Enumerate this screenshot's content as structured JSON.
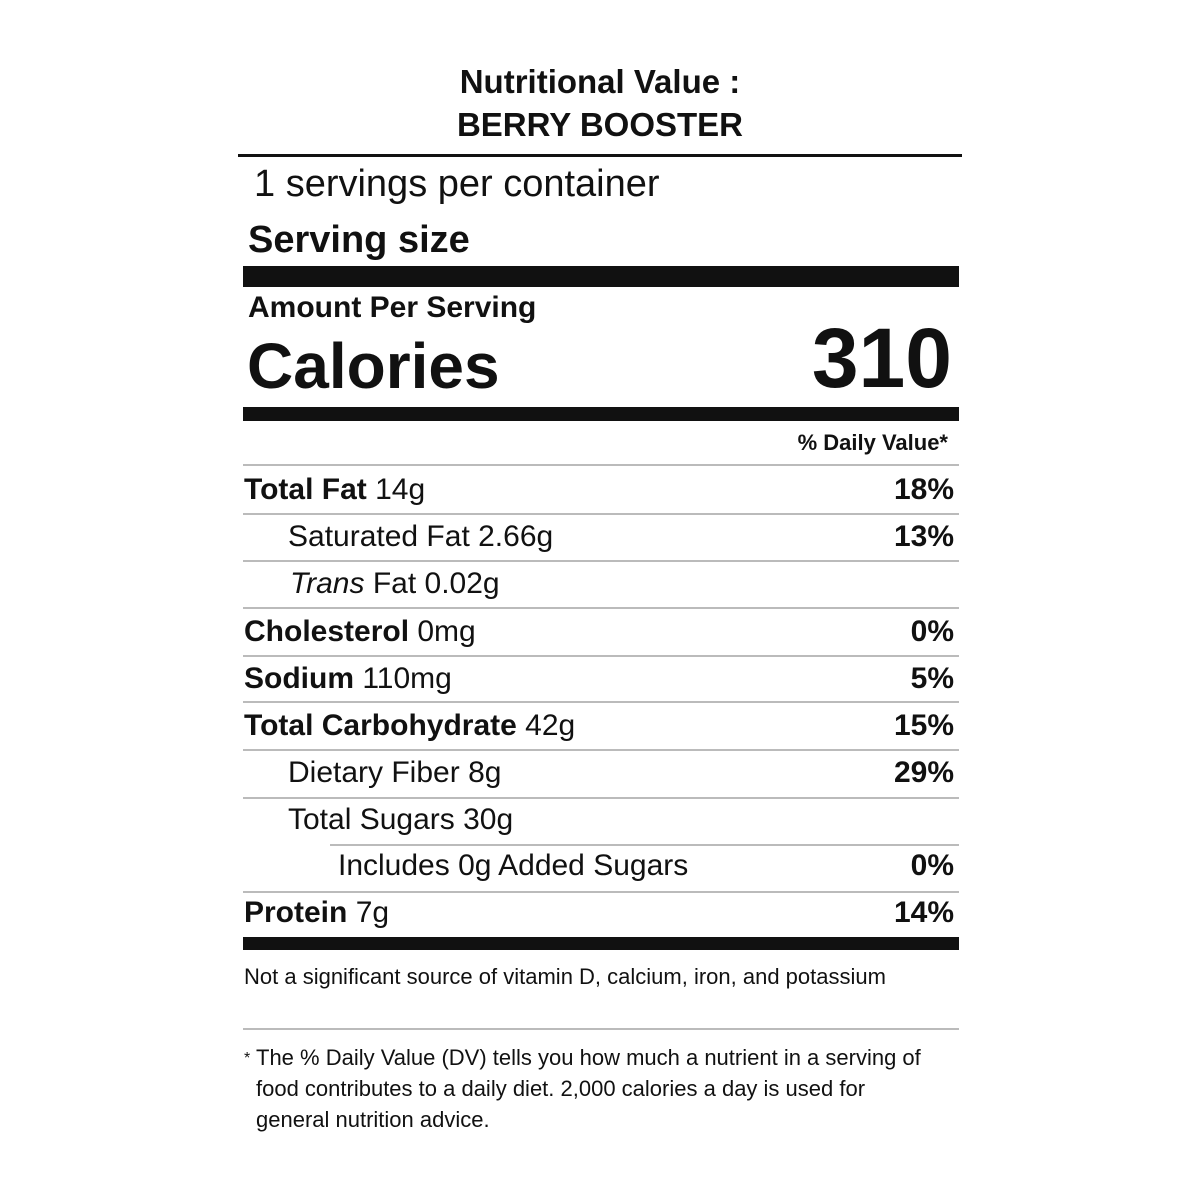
{
  "header": {
    "title": "Nutritional Value :",
    "product": "BERRY BOOSTER"
  },
  "servings": {
    "per_container": "1 servings per container",
    "serving_size": "Serving size"
  },
  "calories": {
    "amount_per_serving": "Amount Per Serving",
    "label": "Calories",
    "value": "310"
  },
  "daily_value_header": "% Daily Value*",
  "rows": [
    {
      "name": "Total Fat",
      "amount": "14g",
      "dv": "18%"
    },
    {
      "name": "Saturated Fat",
      "amount": "2.66g",
      "dv": "13%"
    },
    {
      "prefix": "Trans",
      "name": "Fat",
      "amount": "0.02g"
    },
    {
      "name": "Cholesterol",
      "amount": "0mg",
      "dv": "0%"
    },
    {
      "name": "Sodium",
      "amount": "110mg",
      "dv": "5%"
    },
    {
      "name": "Total Carbohydrate",
      "amount": "42g",
      "dv": "15%"
    },
    {
      "name": "Dietary Fiber",
      "amount": "8g",
      "dv": "29%"
    },
    {
      "name": "Total Sugars",
      "amount": "30g"
    },
    {
      "name": "Includes 0g Added Sugars",
      "dv": "0%"
    },
    {
      "name": "Protein",
      "amount": "7g",
      "dv": "14%"
    }
  ],
  "note": "Not a significant source of vitamin D, calcium, iron, and potassium",
  "footnote": {
    "mark": "*",
    "text": "The % Daily Value (DV) tells you how much a nutrient in a serving of food contributes to a daily diet. 2,000 calories a day is used for general nutrition advice."
  }
}
